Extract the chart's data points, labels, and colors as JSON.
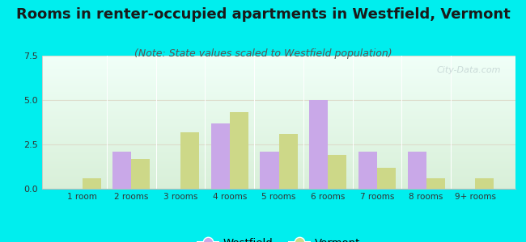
{
  "title": "Rooms in renter-occupied apartments in Westfield, Vermont",
  "subtitle": "(Note: State values scaled to Westfield population)",
  "categories": [
    "1 room",
    "2 rooms",
    "3 rooms",
    "4 rooms",
    "5 rooms",
    "6 rooms",
    "7 rooms",
    "8 rooms",
    "9+ rooms"
  ],
  "westfield_values": [
    0,
    2.1,
    0,
    3.7,
    2.1,
    5.0,
    2.1,
    2.1,
    0
  ],
  "vermont_values": [
    0.6,
    1.7,
    3.2,
    4.3,
    3.1,
    1.9,
    1.2,
    0.6,
    0.6
  ],
  "westfield_color": "#c9a8e8",
  "vermont_color": "#cdd888",
  "ylim": [
    0,
    7.5
  ],
  "yticks": [
    0,
    2.5,
    5,
    7.5
  ],
  "background_color": "#00eeee",
  "plot_bg_top": "#f0fff8",
  "plot_bg_bottom": "#d8efd8",
  "title_fontsize": 13,
  "subtitle_fontsize": 9,
  "bar_width": 0.38,
  "watermark": "City-Data.com"
}
